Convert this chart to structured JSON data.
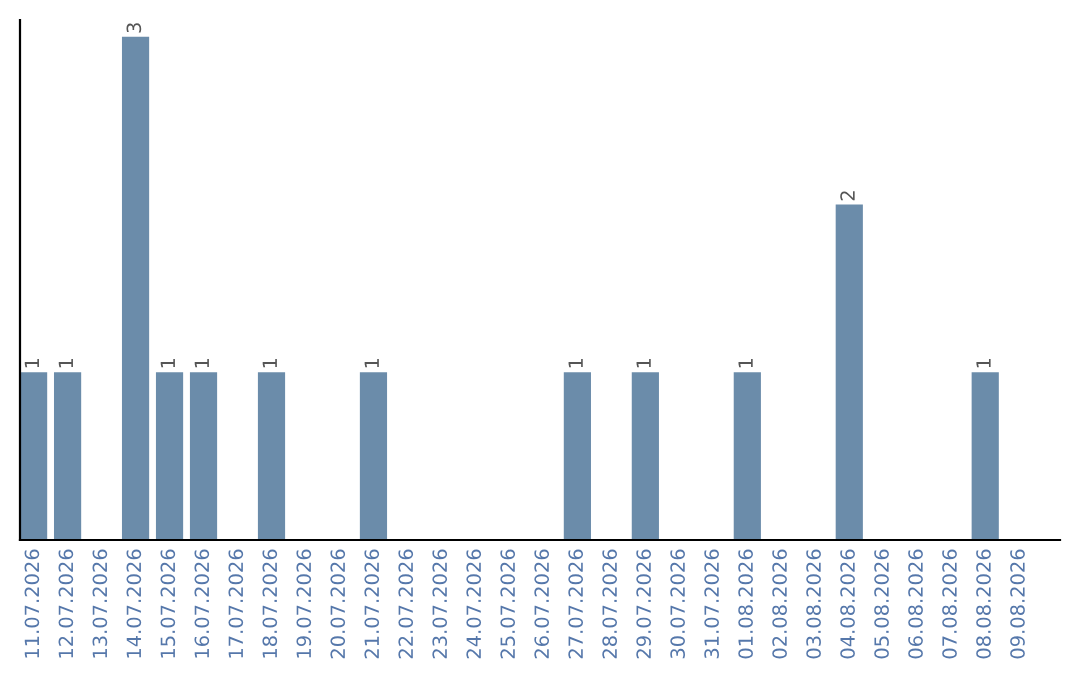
{
  "chart_data": {
    "type": "bar",
    "categories": [
      "11.07.2026",
      "12.07.2026",
      "13.07.2026",
      "14.07.2026",
      "15.07.2026",
      "16.07.2026",
      "17.07.2026",
      "18.07.2026",
      "19.07.2026",
      "20.07.2026",
      "21.07.2026",
      "22.07.2026",
      "23.07.2026",
      "24.07.2026",
      "25.07.2026",
      "26.07.2026",
      "27.07.2026",
      "28.07.2026",
      "29.07.2026",
      "30.07.2026",
      "31.07.2026",
      "01.08.2026",
      "02.08.2026",
      "03.08.2026",
      "04.08.2026",
      "05.08.2026",
      "06.08.2026",
      "07.08.2026",
      "08.08.2026",
      "09.08.2026"
    ],
    "values": [
      1,
      1,
      0,
      3,
      1,
      1,
      0,
      1,
      0,
      0,
      1,
      0,
      0,
      0,
      0,
      0,
      1,
      0,
      1,
      0,
      0,
      1,
      0,
      0,
      2,
      0,
      0,
      0,
      1,
      0
    ],
    "value_labels": [
      "1",
      "1",
      null,
      "3",
      "1",
      "1",
      null,
      "1",
      null,
      null,
      "1",
      null,
      null,
      null,
      null,
      null,
      "1",
      null,
      "1",
      null,
      null,
      "1",
      null,
      null,
      "2",
      null,
      null,
      null,
      "1",
      null
    ],
    "color": "#6b8caa",
    "ylim": [
      0,
      3.1
    ],
    "tick_labels": "x",
    "grid": false,
    "legend": false
  }
}
